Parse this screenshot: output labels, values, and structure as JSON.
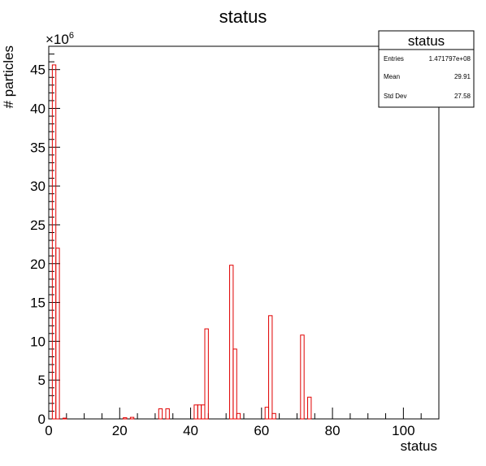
{
  "chart_data": {
    "type": "bar",
    "title": "status",
    "xlabel": "status",
    "ylabel": "# particles",
    "y_multiplier": "×10",
    "y_multiplier_exp": "6",
    "xlim": [
      0,
      110
    ],
    "ylim": [
      0,
      48
    ],
    "x_ticks": [
      0,
      20,
      40,
      60,
      80,
      100
    ],
    "x_tick_labels": [
      "0",
      "20",
      "40",
      "60",
      "80",
      "100"
    ],
    "y_ticks": [
      0,
      5,
      10,
      15,
      20,
      25,
      30,
      35,
      40,
      45
    ],
    "y_tick_labels": [
      "0",
      "5",
      "10",
      "15",
      "20",
      "25",
      "30",
      "35",
      "40",
      "45"
    ],
    "line_color": "#e00000",
    "bin_width": 1,
    "bins": [
      {
        "x": 0,
        "y": 0
      },
      {
        "x": 1,
        "y": 45.6
      },
      {
        "x": 2,
        "y": 22.0
      },
      {
        "x": 3,
        "y": 0
      },
      {
        "x": 4,
        "y": 0.1
      },
      {
        "x": 5,
        "y": 0
      },
      {
        "x": 20,
        "y": 0
      },
      {
        "x": 21,
        "y": 0.15
      },
      {
        "x": 22,
        "y": 0
      },
      {
        "x": 23,
        "y": 0.2
      },
      {
        "x": 24,
        "y": 0
      },
      {
        "x": 30,
        "y": 0
      },
      {
        "x": 31,
        "y": 1.3
      },
      {
        "x": 32,
        "y": 0
      },
      {
        "x": 33,
        "y": 1.3
      },
      {
        "x": 34,
        "y": 0
      },
      {
        "x": 40,
        "y": 0
      },
      {
        "x": 41,
        "y": 1.8
      },
      {
        "x": 42,
        "y": 1.8
      },
      {
        "x": 43,
        "y": 1.8
      },
      {
        "x": 44,
        "y": 11.6
      },
      {
        "x": 45,
        "y": 0
      },
      {
        "x": 50,
        "y": 0
      },
      {
        "x": 51,
        "y": 19.8
      },
      {
        "x": 52,
        "y": 9.0
      },
      {
        "x": 53,
        "y": 0.7
      },
      {
        "x": 54,
        "y": 0
      },
      {
        "x": 60,
        "y": 0
      },
      {
        "x": 61,
        "y": 1.5
      },
      {
        "x": 62,
        "y": 13.3
      },
      {
        "x": 63,
        "y": 0.7
      },
      {
        "x": 64,
        "y": 0
      },
      {
        "x": 70,
        "y": 0
      },
      {
        "x": 71,
        "y": 10.8
      },
      {
        "x": 72,
        "y": 0
      },
      {
        "x": 73,
        "y": 2.8
      },
      {
        "x": 74,
        "y": 0
      }
    ]
  },
  "stats_box": {
    "title": "status",
    "rows": [
      {
        "label": "Entries",
        "value": "1.471797e+08"
      },
      {
        "label": "Mean",
        "value": "29.91"
      },
      {
        "label": "Std Dev",
        "value": "27.58"
      }
    ]
  }
}
